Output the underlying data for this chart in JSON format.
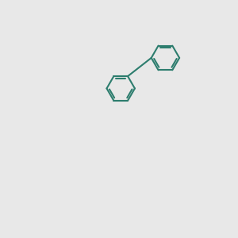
{
  "bg_color": "#e8e8e8",
  "bond_color": "#2d7d6e",
  "N_color": "#0000ff",
  "O_color": "#ff0000",
  "S_color": "#cccc00",
  "H_color": "#808080",
  "lw": 1.5,
  "font_size": 7.5
}
